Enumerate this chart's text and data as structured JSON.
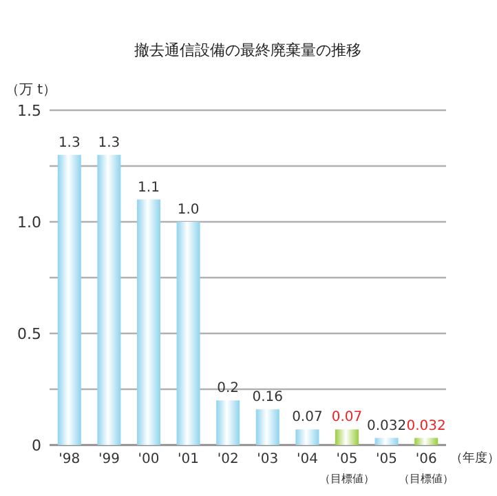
{
  "chart_data": {
    "type": "bar",
    "title": "撤去通信設備の最終廃棄量の推移",
    "ylabel": "（万 t）",
    "xlabel": "（年度）",
    "categories": [
      "'98",
      "'99",
      "'00",
      "'01",
      "'02",
      "'03",
      "'04",
      "'05\n（目標値）",
      "'05",
      "'06\n（目標値）"
    ],
    "values": [
      1.3,
      1.3,
      1.1,
      1.0,
      0.2,
      0.16,
      0.07,
      0.07,
      0.032,
      0.032
    ],
    "colors": [
      "#8fd3ee",
      "#8fd3ee",
      "#8fd3ee",
      "#8fd3ee",
      "#8fd3ee",
      "#8fd3ee",
      "#8fd3ee",
      "#9acd3c",
      "#8fd3ee",
      "#9acd3c"
    ],
    "value_labels": [
      "1.3",
      "1.3",
      "1.1",
      "1.0",
      "0.2",
      "0.16",
      "0.07",
      "0.07",
      "0.032",
      "0.032"
    ],
    "ylim": [
      0,
      1.5
    ],
    "yticks": [
      0,
      {
        "value": 0.25,
        "label": null
      },
      0.5,
      {
        "value": 0.75,
        "label": null
      },
      {
        "value": 1.0,
        "label": "1.0"
      },
      {
        "value": 1.25,
        "label": null
      },
      1.5
    ],
    "grid": "y"
  }
}
